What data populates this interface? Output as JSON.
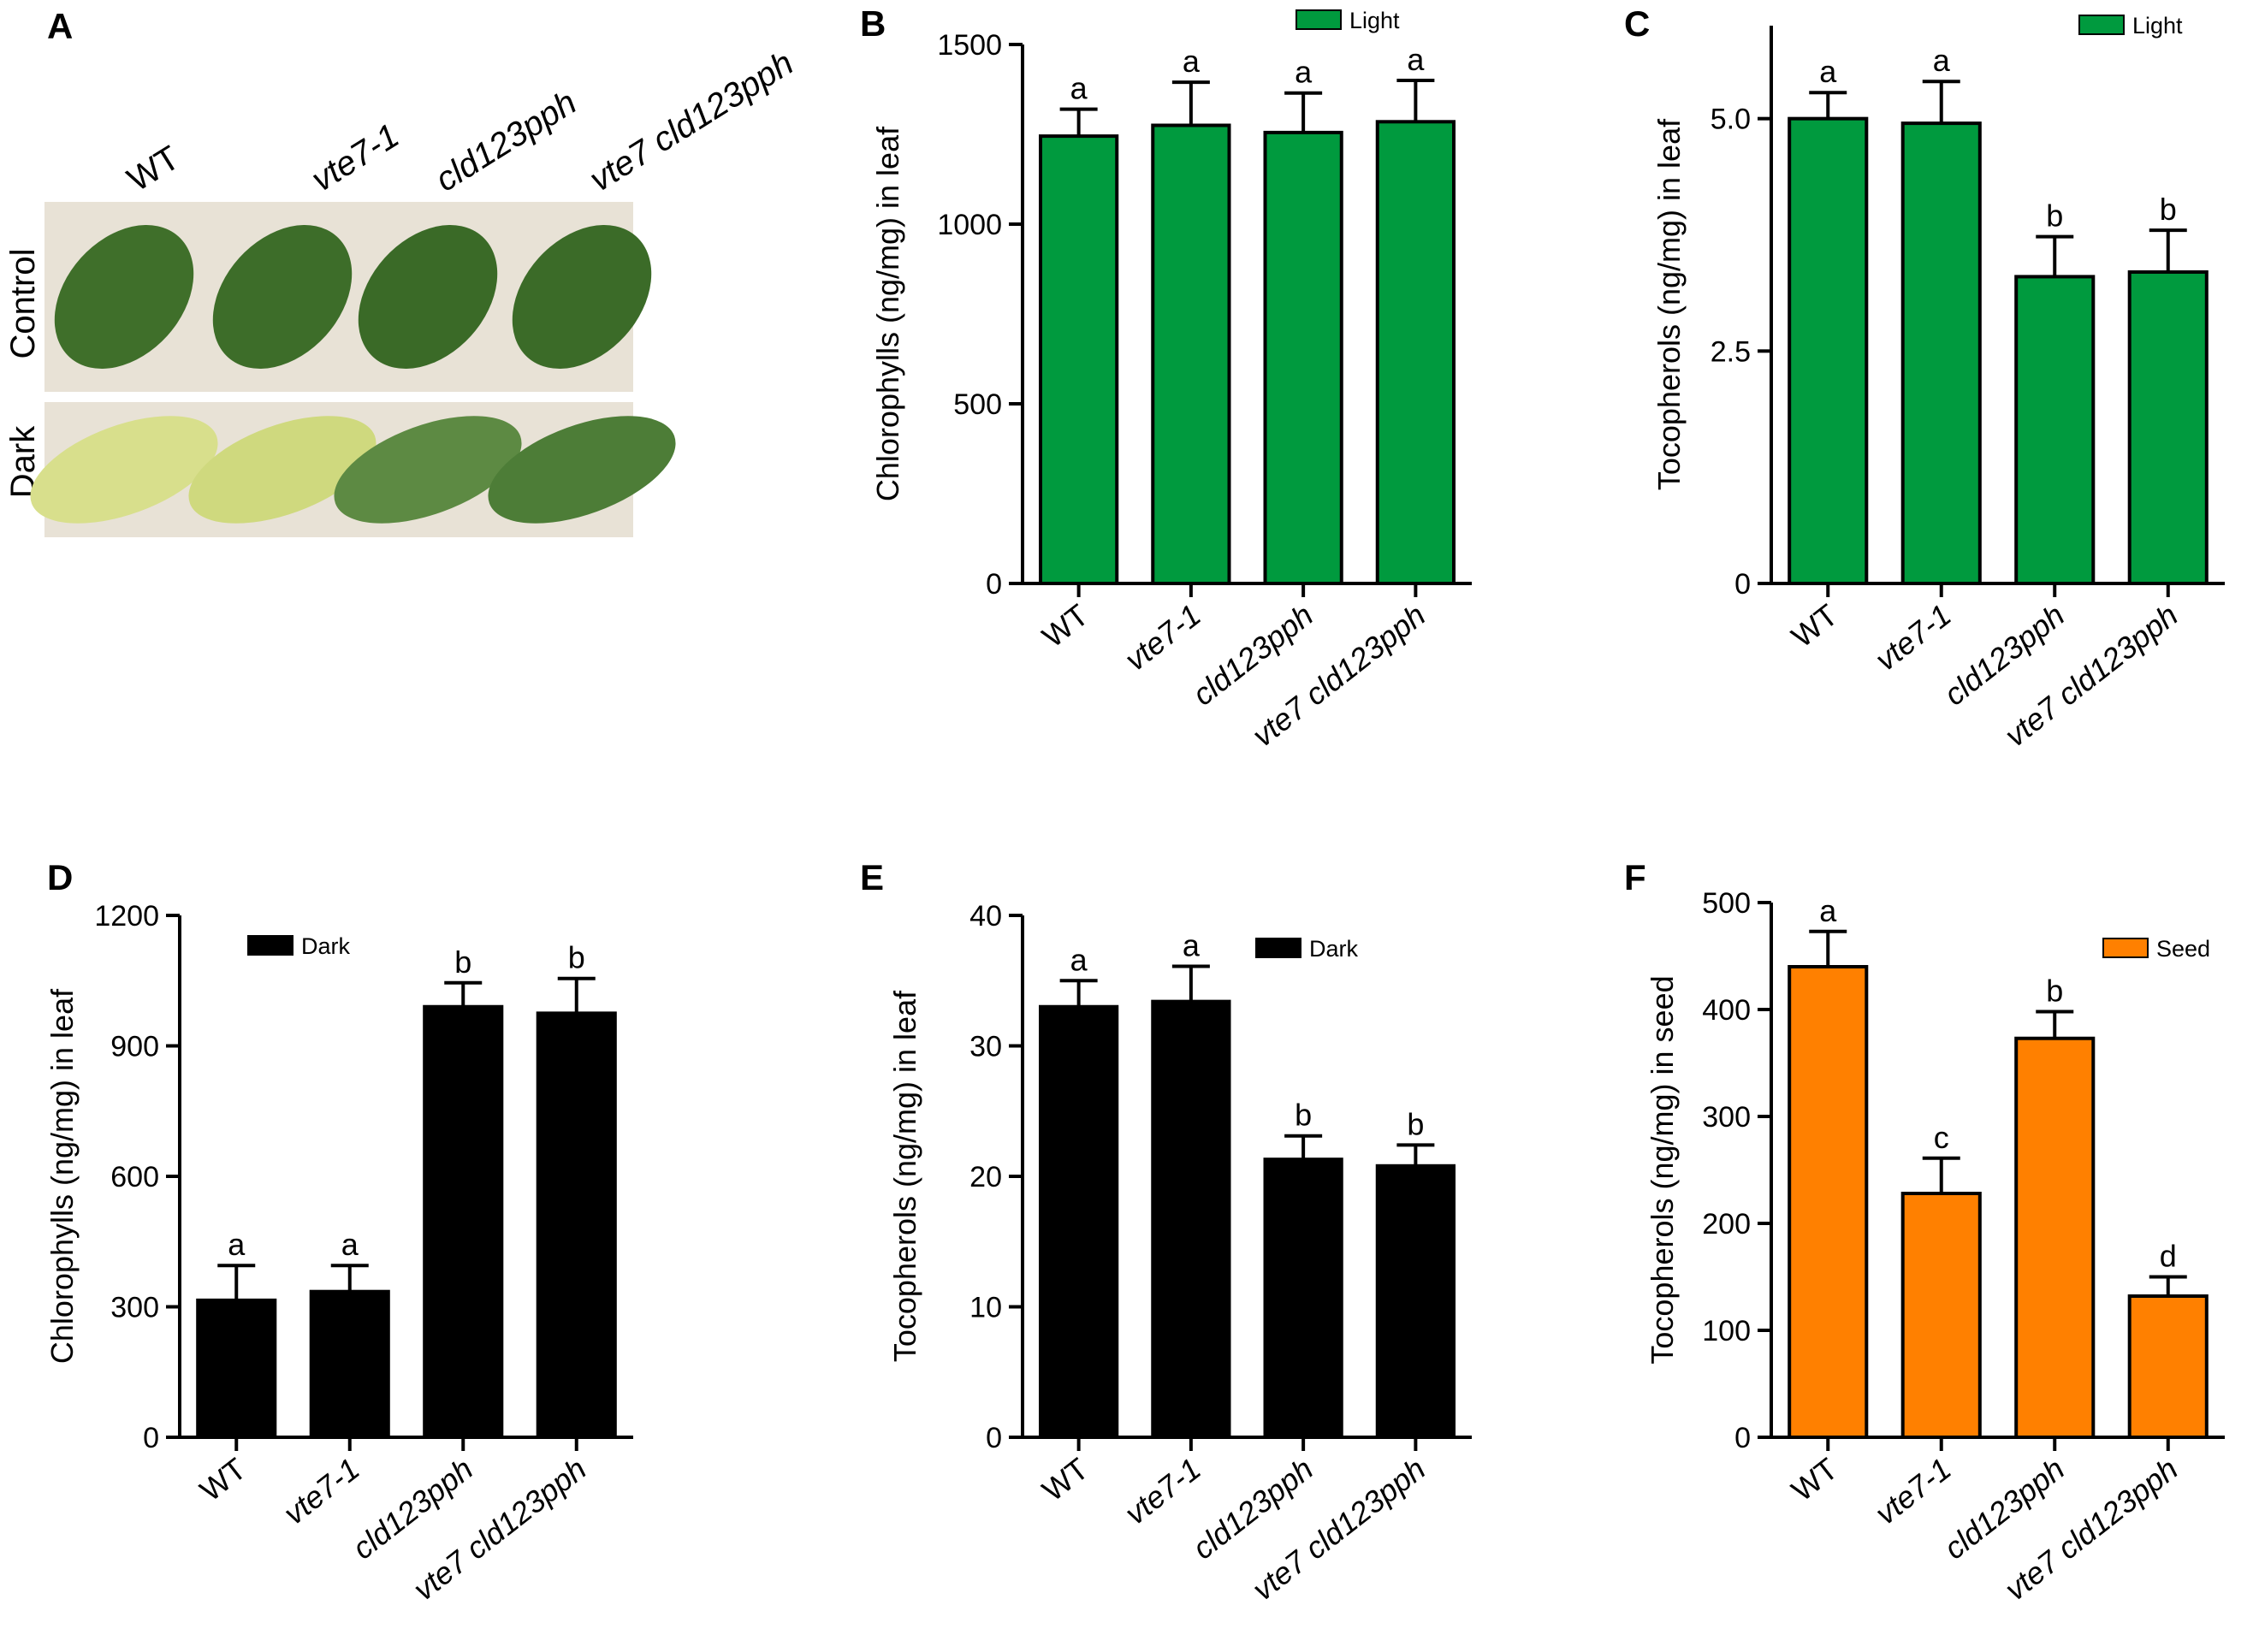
{
  "photo_panel": {
    "letter": "A",
    "columns": [
      {
        "text": "WT",
        "italic": false
      },
      {
        "text": "vte7-1",
        "italic": true
      },
      {
        "text": "cld123pph",
        "italic": true
      },
      {
        "text": "vte7 cld123pph",
        "italic": true
      }
    ],
    "rows": [
      "Control",
      "Dark"
    ],
    "leaf_colors": {
      "control": [
        "#3f6f2a",
        "#3d6d29",
        "#3a6a27",
        "#3b6b28"
      ],
      "dark": [
        "#d8df8c",
        "#cfd97e",
        "#5d8a43",
        "#4d7d37"
      ]
    },
    "background_color": "#e8e2d6"
  },
  "chart_data": [
    {
      "panel": "B",
      "type": "bar",
      "categories": [
        "WT",
        "vte7-1",
        "cld123pph",
        "vte7 cld123pph"
      ],
      "values": [
        1245,
        1275,
        1255,
        1285
      ],
      "errors": [
        75,
        120,
        110,
        115
      ],
      "letters": [
        "a",
        "a",
        "a",
        "a"
      ],
      "ylabel": "Chlorophylls (ng/mg) in leaf",
      "ylim": [
        0,
        1500
      ],
      "yticks": [
        "0",
        "500",
        "1000",
        "1500"
      ],
      "legend": "Light",
      "legend_position": "top-right",
      "color": "#009a3e"
    },
    {
      "panel": "C",
      "type": "bar",
      "categories": [
        "WT",
        "vte7-1",
        "cld123pph",
        "vte7 cld123pph"
      ],
      "values": [
        5.0,
        4.95,
        3.3,
        3.35
      ],
      "errors": [
        0.28,
        0.45,
        0.43,
        0.45
      ],
      "letters": [
        "a",
        "a",
        "b",
        "b"
      ],
      "ylabel": "Tocopherols (ng/mg) in leaf",
      "ylim": [
        0,
        6
      ],
      "yticks": [
        "0",
        "2.5",
        "5.0"
      ],
      "legend": "Light",
      "legend_position": "top-right",
      "color": "#009a3e"
    },
    {
      "panel": "D",
      "type": "bar",
      "categories": [
        "WT",
        "vte7-1",
        "cld123pph",
        "vte7 cld123pph"
      ],
      "values": [
        315,
        335,
        990,
        975
      ],
      "errors": [
        80,
        60,
        55,
        80
      ],
      "letters": [
        "a",
        "a",
        "b",
        "b"
      ],
      "ylabel": "Chlorophylls (ng/mg) in leaf",
      "ylim": [
        0,
        1200
      ],
      "yticks": [
        "0",
        "300",
        "600",
        "900",
        "1200"
      ],
      "legend": "Dark",
      "legend_position": "top-left",
      "color": "#000000"
    },
    {
      "panel": "E",
      "type": "bar",
      "categories": [
        "WT",
        "vte7-1",
        "cld123pph",
        "vte7 cld123pph"
      ],
      "values": [
        33.0,
        33.4,
        21.3,
        20.8
      ],
      "errors": [
        2.0,
        2.7,
        1.8,
        1.6
      ],
      "letters": [
        "a",
        "a",
        "b",
        "b"
      ],
      "ylabel": "Tocopherols (ng/mg) in leaf",
      "ylim": [
        0,
        40
      ],
      "yticks": [
        "0",
        "10",
        "20",
        "30",
        "40"
      ],
      "legend": "Dark",
      "legend_position": "top-right",
      "color": "#000000"
    },
    {
      "panel": "F",
      "type": "bar",
      "categories": [
        "WT",
        "vte7-1",
        "cld123pph",
        "vte7 cld123pph"
      ],
      "values": [
        440,
        228,
        373,
        132
      ],
      "errors": [
        33,
        33,
        25,
        18
      ],
      "letters": [
        "a",
        "c",
        "b",
        "d"
      ],
      "ylabel": "Tocopherols (ng/mg) in seed",
      "ylim": [
        0,
        500
      ],
      "yticks": [
        "0",
        "100",
        "200",
        "300",
        "400",
        "500"
      ],
      "legend": "Seed",
      "legend_position": "top-right",
      "color": "#ff8000"
    }
  ]
}
